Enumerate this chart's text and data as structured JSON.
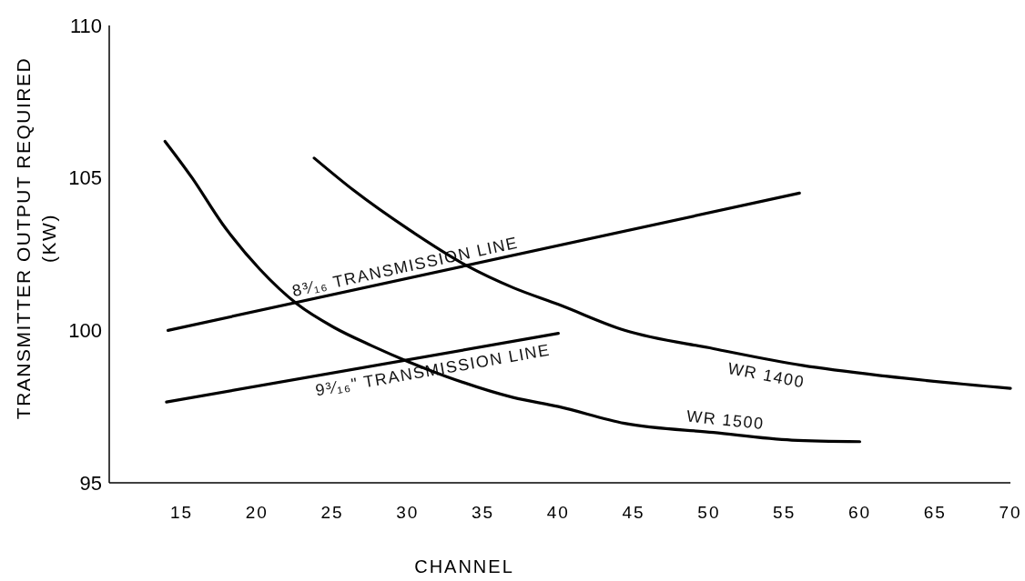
{
  "chart_data": {
    "type": "line",
    "xlabel": "CHANNEL",
    "ylabel": "TRANSMITTER OUTPUT REQUIRED\n(KW)",
    "xlim": [
      10.2,
      70
    ],
    "xticks": [
      15,
      20,
      25,
      30,
      35,
      40,
      45,
      50,
      55,
      60,
      65,
      70
    ],
    "ylim": [
      95,
      110
    ],
    "yticks": [
      95,
      100,
      105,
      110
    ],
    "grid": false,
    "marker": "none",
    "line_style": "solid",
    "series": [
      {
        "name": "8³⁄₁₆ TRANSMISSION LINE",
        "color": "#000000",
        "x": [
          14.1,
          56
        ],
        "values": [
          100,
          104.5
        ]
      },
      {
        "name": "9³⁄₁₆\" TRANSMISSION LINE",
        "color": "#000000",
        "x": [
          14,
          40
        ],
        "values": [
          97.65,
          99.9
        ]
      },
      {
        "name": "WR 1400",
        "color": "#000000",
        "x": [
          23.8,
          26.4,
          30.1,
          34,
          37,
          40,
          44.4,
          50.3,
          56.2,
          61.7,
          70
        ],
        "values": [
          105.65,
          104.6,
          103.3,
          102.1,
          101.4,
          100.85,
          100,
          99.4,
          98.85,
          98.5,
          98.1
        ]
      },
      {
        "name": "WR 1500",
        "color": "#000000",
        "x": [
          13.9,
          15.7,
          17.7,
          20.2,
          22.7,
          25.1,
          27.6,
          30.1,
          32.5,
          37,
          40,
          44.4,
          50.3,
          55.5,
          60
        ],
        "values": [
          106.2,
          105,
          103.5,
          102,
          100.85,
          100.1,
          99.5,
          98.96,
          98.5,
          97.8,
          97.5,
          96.95,
          96.65,
          96.4,
          96.35
        ]
      }
    ]
  }
}
